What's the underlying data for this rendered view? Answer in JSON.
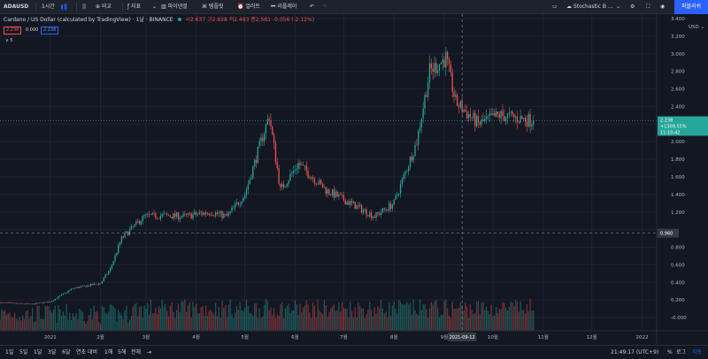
{
  "toolbar": {
    "symbol": "ADAUSD",
    "interval": "1시간",
    "compare": "비교",
    "indicators": "지표",
    "financials": "파이낸셜",
    "templates": "템플릿",
    "alert": "얼러트",
    "replay": "리플레이",
    "indicator_search": "Stochastic B ...",
    "publish": "퍼블리쉬"
  },
  "legend": {
    "title": "Cardano / US Dollar (calculated by TradingView) · 1날 · BINANCE",
    "open": "시2.637",
    "high": "고2.828",
    "low": "저2.493",
    "close": "종2.581",
    "change": "-0.056 (-2.12%)",
    "sell_price": "2.238",
    "spread": "0.000",
    "buy_price": "2.238",
    "volume_toggle": "∨ 5"
  },
  "price_axis": {
    "currency": "USD",
    "last_price_label": "2.238",
    "last_change_label": "+1309.55%",
    "countdown_label": "11:10:42",
    "crosshair_price_label": "0.960",
    "accent_up": "#26a69a",
    "accent_down": "#ef5350"
  },
  "time_axis": {
    "crosshair_date_label": "2021-09-12"
  },
  "bottombar": {
    "ranges": [
      "1일",
      "5일",
      "1달",
      "3달",
      "6달",
      "연초 대비",
      "1해",
      "5해",
      "전체"
    ],
    "clock": "21:49:17 (UTC+9)",
    "percent": "%",
    "log": "로그",
    "auto": "자동"
  },
  "chart_data": {
    "type": "candlestick",
    "title": "Cardano / US Dollar (calculated by TradingView)",
    "timeframe": "1날",
    "exchange": "BINANCE",
    "y_range": [
      -0.15,
      3.45
    ],
    "y_ticks": [
      -0.0,
      0.2,
      0.4,
      0.6,
      0.8,
      1.0,
      1.2,
      1.4,
      1.6,
      1.8,
      2.0,
      2.2,
      2.4,
      2.6,
      2.8,
      3.0,
      3.2,
      3.4
    ],
    "y_tick_labels": [
      "-0.000",
      "0.200",
      "0.400",
      "0.600",
      "0.800",
      "",
      "1.200",
      "1.400",
      "1.600",
      "1.800",
      "2.000",
      "2.200",
      "2.400",
      "2.600",
      "2.800",
      "3.000",
      "3.200",
      "3.400"
    ],
    "x_range": [
      "2020-12-01",
      "2022-01-10"
    ],
    "x_ticks": [
      {
        "date": "2021-01-01",
        "label": "2021"
      },
      {
        "date": "2021-02-01",
        "label": "2월"
      },
      {
        "date": "2021-03-01",
        "label": "3월"
      },
      {
        "date": "2021-04-01",
        "label": "4월"
      },
      {
        "date": "2021-05-01",
        "label": "5월"
      },
      {
        "date": "2021-06-01",
        "label": "6월"
      },
      {
        "date": "2021-07-01",
        "label": "7월"
      },
      {
        "date": "2021-08-01",
        "label": "8월"
      },
      {
        "date": "2021-09-01",
        "label": "9월"
      },
      {
        "date": "2021-10-01",
        "label": "10월"
      },
      {
        "date": "2021-11-01",
        "label": "11월"
      },
      {
        "date": "2021-12-01",
        "label": "12월"
      },
      {
        "date": "2022-01-01",
        "label": "2022"
      }
    ],
    "last_date": "2021-10-26",
    "anchors": [
      [
        "2020-12-01",
        0.17
      ],
      [
        "2020-12-20",
        0.15
      ],
      [
        "2021-01-01",
        0.18
      ],
      [
        "2021-01-15",
        0.33
      ],
      [
        "2021-02-01",
        0.39
      ],
      [
        "2021-02-07",
        0.55
      ],
      [
        "2021-02-14",
        0.9
      ],
      [
        "2021-02-28",
        1.15
      ],
      [
        "2021-03-12",
        1.16
      ],
      [
        "2021-03-25",
        1.15
      ],
      [
        "2021-04-10",
        1.2
      ],
      [
        "2021-04-20",
        1.15
      ],
      [
        "2021-05-01",
        1.4
      ],
      [
        "2021-05-16",
        2.3
      ],
      [
        "2021-05-23",
        1.45
      ],
      [
        "2021-06-03",
        1.75
      ],
      [
        "2021-06-20",
        1.45
      ],
      [
        "2021-07-05",
        1.3
      ],
      [
        "2021-07-20",
        1.15
      ],
      [
        "2021-08-01",
        1.3
      ],
      [
        "2021-08-15",
        2.0
      ],
      [
        "2021-08-23",
        2.8
      ],
      [
        "2021-09-02",
        2.95
      ],
      [
        "2021-09-08",
        2.45
      ],
      [
        "2021-09-22",
        2.2
      ],
      [
        "2021-10-05",
        2.3
      ],
      [
        "2021-10-26",
        2.238
      ]
    ],
    "last_price": 2.238,
    "crosshair": {
      "date": "2021-09-12",
      "price": 0.96
    }
  }
}
